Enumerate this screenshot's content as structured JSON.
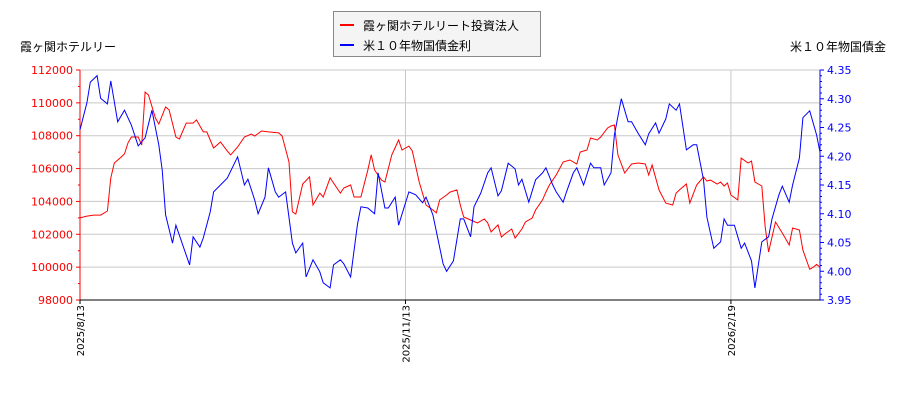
{
  "chart_data": {
    "type": "line",
    "title": "",
    "left_axis_title": "霞ヶ関ホテルリー",
    "right_axis_title": "米１０年物国債金",
    "x_ticks": [
      {
        "index": 0,
        "label": "2025/8/13"
      },
      {
        "index": 95,
        "label": "2025/11/13"
      },
      {
        "index": 190,
        "label": "2026/2/19"
      }
    ],
    "xlim": [
      0,
      216
    ],
    "left_ylim": [
      98000,
      112000
    ],
    "left_ticks": [
      "98000",
      "100000",
      "102000",
      "104000",
      "106000",
      "108000",
      "110000",
      "112000"
    ],
    "right_ylim": [
      3.95,
      4.35
    ],
    "right_ticks": [
      "3.95",
      "4.00",
      "4.05",
      "4.10",
      "4.15",
      "4.20",
      "4.25",
      "4.30",
      "4.35"
    ],
    "grid": true,
    "legend_placement": "top-center",
    "series": [
      {
        "name": "霞ヶ関ホテルリート投資法人",
        "color": "#ff0000",
        "axis": "left",
        "points": [
          [
            0,
            103000
          ],
          [
            1,
            103050
          ],
          [
            2,
            103110
          ],
          [
            4,
            103170
          ],
          [
            6,
            103170
          ],
          [
            8,
            103420
          ],
          [
            9,
            105430
          ],
          [
            10,
            106340
          ],
          [
            12,
            106700
          ],
          [
            13,
            106890
          ],
          [
            14,
            107560
          ],
          [
            15,
            107920
          ],
          [
            17,
            107920
          ],
          [
            18,
            107430
          ],
          [
            19,
            110660
          ],
          [
            20,
            110480
          ],
          [
            22,
            109080
          ],
          [
            23,
            108710
          ],
          [
            25,
            109750
          ],
          [
            26,
            109570
          ],
          [
            28,
            107920
          ],
          [
            29,
            107800
          ],
          [
            31,
            108770
          ],
          [
            33,
            108770
          ],
          [
            34,
            108960
          ],
          [
            36,
            108230
          ],
          [
            37,
            108230
          ],
          [
            39,
            107250
          ],
          [
            41,
            107620
          ],
          [
            43,
            107070
          ],
          [
            44,
            106830
          ],
          [
            46,
            107310
          ],
          [
            48,
            107920
          ],
          [
            50,
            108100
          ],
          [
            51,
            107980
          ],
          [
            53,
            108290
          ],
          [
            55,
            108230
          ],
          [
            58,
            108170
          ],
          [
            59,
            107980
          ],
          [
            61,
            106400
          ],
          [
            62,
            103360
          ],
          [
            63,
            103230
          ],
          [
            65,
            105060
          ],
          [
            67,
            105490
          ],
          [
            68,
            103780
          ],
          [
            70,
            104510
          ],
          [
            71,
            104270
          ],
          [
            73,
            105430
          ],
          [
            75,
            104820
          ],
          [
            76,
            104510
          ],
          [
            77,
            104820
          ],
          [
            79,
            105000
          ],
          [
            80,
            104270
          ],
          [
            82,
            104270
          ],
          [
            84,
            105910
          ],
          [
            85,
            106830
          ],
          [
            86,
            105910
          ],
          [
            88,
            105300
          ],
          [
            89,
            105180
          ],
          [
            91,
            106830
          ],
          [
            93,
            107740
          ],
          [
            94,
            107130
          ],
          [
            96,
            107370
          ],
          [
            97,
            107070
          ],
          [
            99,
            105180
          ],
          [
            101,
            103780
          ],
          [
            103,
            103480
          ],
          [
            104,
            103300
          ],
          [
            105,
            104090
          ],
          [
            107,
            104390
          ],
          [
            108,
            104570
          ],
          [
            110,
            104700
          ],
          [
            111,
            103780
          ],
          [
            112,
            103050
          ],
          [
            114,
            102870
          ],
          [
            116,
            102690
          ],
          [
            118,
            102930
          ],
          [
            119,
            102690
          ],
          [
            120,
            102140
          ],
          [
            122,
            102570
          ],
          [
            123,
            101830
          ],
          [
            124,
            102020
          ],
          [
            126,
            102320
          ],
          [
            127,
            101770
          ],
          [
            129,
            102320
          ],
          [
            130,
            102750
          ],
          [
            132,
            102990
          ],
          [
            133,
            103480
          ],
          [
            135,
            104090
          ],
          [
            136,
            104570
          ],
          [
            137,
            105000
          ],
          [
            139,
            105610
          ],
          [
            141,
            106400
          ],
          [
            143,
            106520
          ],
          [
            145,
            106280
          ],
          [
            146,
            107010
          ],
          [
            148,
            107130
          ],
          [
            149,
            107860
          ],
          [
            151,
            107740
          ],
          [
            152,
            107920
          ],
          [
            154,
            108470
          ],
          [
            155,
            108590
          ],
          [
            156,
            108650
          ],
          [
            157,
            106830
          ],
          [
            159,
            105730
          ],
          [
            161,
            106280
          ],
          [
            163,
            106340
          ],
          [
            165,
            106280
          ],
          [
            166,
            105610
          ],
          [
            167,
            106220
          ],
          [
            169,
            104700
          ],
          [
            171,
            103900
          ],
          [
            173,
            103780
          ],
          [
            174,
            104510
          ],
          [
            175,
            104700
          ],
          [
            177,
            105060
          ],
          [
            178,
            103900
          ],
          [
            180,
            105000
          ],
          [
            182,
            105490
          ],
          [
            183,
            105240
          ],
          [
            184,
            105300
          ],
          [
            186,
            105060
          ],
          [
            187,
            105180
          ],
          [
            188,
            104940
          ],
          [
            189,
            105120
          ],
          [
            190,
            104390
          ],
          [
            192,
            104090
          ],
          [
            193,
            106640
          ],
          [
            195,
            106340
          ],
          [
            196,
            106460
          ],
          [
            197,
            105180
          ],
          [
            199,
            104940
          ],
          [
            200,
            102440
          ],
          [
            201,
            100920
          ],
          [
            202,
            101830
          ],
          [
            203,
            102750
          ],
          [
            205,
            102080
          ],
          [
            207,
            101350
          ],
          [
            208,
            102380
          ],
          [
            210,
            102260
          ],
          [
            211,
            101040
          ],
          [
            213,
            99870
          ],
          [
            214,
            99990
          ],
          [
            215,
            100170
          ],
          [
            216,
            99990
          ]
        ]
      },
      {
        "name": "米１０年物国債金利",
        "color": "#0000ff",
        "axis": "right",
        "points": [
          [
            0,
            4.246
          ],
          [
            2,
            4.293
          ],
          [
            3,
            4.329
          ],
          [
            5,
            4.34
          ],
          [
            6,
            4.301
          ],
          [
            8,
            4.291
          ],
          [
            9,
            4.331
          ],
          [
            11,
            4.26
          ],
          [
            13,
            4.28
          ],
          [
            15,
            4.254
          ],
          [
            17,
            4.218
          ],
          [
            19,
            4.232
          ],
          [
            21,
            4.28
          ],
          [
            23,
            4.22
          ],
          [
            24,
            4.176
          ],
          [
            25,
            4.098
          ],
          [
            27,
            4.049
          ],
          [
            28,
            4.08
          ],
          [
            32,
            4.011
          ],
          [
            33,
            4.06
          ],
          [
            35,
            4.042
          ],
          [
            36,
            4.058
          ],
          [
            38,
            4.103
          ],
          [
            39,
            4.138
          ],
          [
            43,
            4.162
          ],
          [
            46,
            4.199
          ],
          [
            48,
            4.15
          ],
          [
            49,
            4.16
          ],
          [
            51,
            4.124
          ],
          [
            52,
            4.1
          ],
          [
            54,
            4.129
          ],
          [
            55,
            4.18
          ],
          [
            57,
            4.138
          ],
          [
            58,
            4.129
          ],
          [
            60,
            4.138
          ],
          [
            62,
            4.049
          ],
          [
            63,
            4.032
          ],
          [
            65,
            4.049
          ],
          [
            66,
            3.99
          ],
          [
            68,
            4.02
          ],
          [
            70,
            3.999
          ],
          [
            71,
            3.98
          ],
          [
            73,
            3.971
          ],
          [
            74,
            4.011
          ],
          [
            76,
            4.02
          ],
          [
            77,
            4.013
          ],
          [
            79,
            3.99
          ],
          [
            81,
            4.082
          ],
          [
            82,
            4.112
          ],
          [
            84,
            4.11
          ],
          [
            86,
            4.1
          ],
          [
            87,
            4.171
          ],
          [
            89,
            4.11
          ],
          [
            90,
            4.11
          ],
          [
            92,
            4.129
          ],
          [
            93,
            4.08
          ],
          [
            96,
            4.138
          ],
          [
            98,
            4.133
          ],
          [
            100,
            4.119
          ],
          [
            101,
            4.129
          ],
          [
            103,
            4.098
          ],
          [
            106,
            4.013
          ],
          [
            107,
            4.0
          ],
          [
            109,
            4.018
          ],
          [
            111,
            4.091
          ],
          [
            112,
            4.091
          ],
          [
            114,
            4.06
          ],
          [
            115,
            4.112
          ],
          [
            117,
            4.136
          ],
          [
            119,
            4.171
          ],
          [
            120,
            4.18
          ],
          [
            122,
            4.131
          ],
          [
            123,
            4.14
          ],
          [
            125,
            4.188
          ],
          [
            127,
            4.178
          ],
          [
            128,
            4.15
          ],
          [
            129,
            4.16
          ],
          [
            131,
            4.12
          ],
          [
            133,
            4.159
          ],
          [
            135,
            4.171
          ],
          [
            136,
            4.18
          ],
          [
            138,
            4.15
          ],
          [
            139,
            4.138
          ],
          [
            141,
            4.12
          ],
          [
            142,
            4.138
          ],
          [
            144,
            4.171
          ],
          [
            145,
            4.18
          ],
          [
            147,
            4.15
          ],
          [
            149,
            4.188
          ],
          [
            150,
            4.18
          ],
          [
            152,
            4.18
          ],
          [
            153,
            4.15
          ],
          [
            155,
            4.171
          ],
          [
            156,
            4.237
          ],
          [
            158,
            4.3
          ],
          [
            160,
            4.26
          ],
          [
            161,
            4.26
          ],
          [
            163,
            4.239
          ],
          [
            165,
            4.22
          ],
          [
            166,
            4.239
          ],
          [
            168,
            4.258
          ],
          [
            169,
            4.24
          ],
          [
            171,
            4.265
          ],
          [
            172,
            4.291
          ],
          [
            174,
            4.28
          ],
          [
            175,
            4.291
          ],
          [
            177,
            4.211
          ],
          [
            179,
            4.22
          ],
          [
            180,
            4.22
          ],
          [
            182,
            4.159
          ],
          [
            183,
            4.094
          ],
          [
            185,
            4.04
          ],
          [
            187,
            4.051
          ],
          [
            188,
            4.091
          ],
          [
            189,
            4.08
          ],
          [
            191,
            4.08
          ],
          [
            193,
            4.04
          ],
          [
            194,
            4.049
          ],
          [
            196,
            4.018
          ],
          [
            197,
            3.971
          ],
          [
            199,
            4.051
          ],
          [
            201,
            4.06
          ],
          [
            202,
            4.091
          ],
          [
            204,
            4.133
          ],
          [
            205,
            4.148
          ],
          [
            207,
            4.12
          ],
          [
            208,
            4.15
          ],
          [
            210,
            4.197
          ],
          [
            211,
            4.267
          ],
          [
            213,
            4.279
          ],
          [
            215,
            4.237
          ],
          [
            216,
            4.207
          ]
        ]
      }
    ]
  }
}
